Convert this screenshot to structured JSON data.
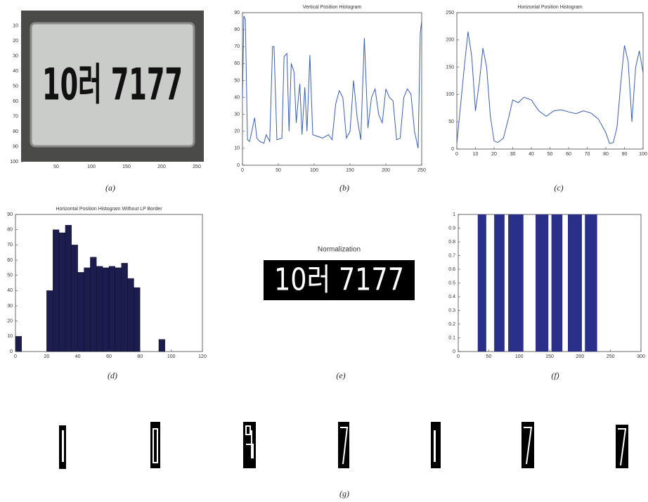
{
  "chart_data": [
    {
      "type": "image",
      "caption": "(a)",
      "plate_text": "10러 7177",
      "xlim": [
        0,
        260
      ],
      "ylim": [
        0,
        100
      ],
      "y_inverted": true,
      "xticks": [
        50,
        100,
        150,
        200,
        250
      ],
      "yticks": [
        10,
        20,
        30,
        40,
        50,
        60,
        70,
        80,
        90,
        100
      ]
    },
    {
      "type": "line",
      "title": "Vertical Position Histogram",
      "caption": "(b)",
      "color": "#3a5fb0",
      "x": [
        0,
        2,
        4,
        7,
        10,
        14,
        17,
        20,
        24,
        30,
        33,
        38,
        42,
        44,
        48,
        55,
        58,
        62,
        65,
        68,
        72,
        75,
        78,
        80,
        83,
        87,
        90,
        94,
        98,
        105,
        112,
        120,
        125,
        130,
        135,
        140,
        145,
        150,
        155,
        160,
        165,
        170,
        175,
        180,
        185,
        190,
        195,
        200,
        205,
        210,
        215,
        220,
        225,
        230,
        235,
        240,
        245,
        248,
        250
      ],
      "values": [
        40,
        88,
        86,
        15,
        14,
        22,
        28,
        16,
        14,
        13,
        18,
        14,
        70,
        70,
        15,
        16,
        64,
        66,
        20,
        60,
        55,
        25,
        40,
        48,
        18,
        46,
        20,
        65,
        18,
        17,
        16,
        18,
        15,
        36,
        44,
        40,
        16,
        20,
        50,
        28,
        15,
        75,
        22,
        40,
        45,
        30,
        25,
        45,
        40,
        38,
        15,
        16,
        40,
        45,
        42,
        20,
        10,
        78,
        85
      ],
      "xlim": [
        0,
        250
      ],
      "ylim": [
        0,
        90
      ],
      "xticks": [
        0,
        50,
        100,
        150,
        200,
        250
      ],
      "yticks": [
        0,
        10,
        20,
        30,
        40,
        50,
        60,
        70,
        80,
        90
      ]
    },
    {
      "type": "line",
      "title": "Horizontal Position Histogram",
      "caption": "(c)",
      "color": "#3a5fb0",
      "x": [
        0,
        2,
        4,
        6,
        8,
        10,
        12,
        14,
        16,
        18,
        20,
        22,
        25,
        28,
        30,
        33,
        36,
        40,
        44,
        48,
        52,
        56,
        60,
        64,
        68,
        72,
        76,
        80,
        82,
        84,
        86,
        88,
        90,
        92,
        94,
        96,
        98,
        100
      ],
      "values": [
        10,
        80,
        150,
        215,
        170,
        70,
        120,
        185,
        150,
        60,
        15,
        12,
        20,
        60,
        90,
        85,
        95,
        90,
        70,
        60,
        70,
        72,
        68,
        65,
        70,
        66,
        55,
        30,
        10,
        12,
        40,
        120,
        190,
        160,
        50,
        150,
        180,
        140
      ],
      "xlim": [
        0,
        100
      ],
      "ylim": [
        0,
        250
      ],
      "xticks": [
        0,
        10,
        20,
        30,
        40,
        50,
        60,
        70,
        80,
        90,
        100
      ],
      "yticks": [
        0,
        50,
        100,
        150,
        200,
        250
      ]
    },
    {
      "type": "histogram",
      "title": "Horizontal Position Histogram Without LP Border",
      "caption": "(d)",
      "color": "#1c1c4e",
      "bins": [
        0,
        4,
        8,
        12,
        16,
        20,
        24,
        28,
        32,
        36,
        40,
        44,
        48,
        52,
        56,
        60,
        64,
        68,
        72,
        76,
        80,
        84,
        88,
        92,
        96,
        100,
        104,
        108,
        112,
        116,
        120
      ],
      "values": [
        10,
        0,
        0,
        0,
        0,
        40,
        80,
        78,
        83,
        70,
        52,
        55,
        62,
        56,
        55,
        56,
        55,
        58,
        48,
        42,
        0,
        0,
        0,
        8,
        0,
        0,
        0,
        0,
        0,
        0
      ],
      "xlim": [
        0,
        120
      ],
      "ylim": [
        0,
        90
      ],
      "xticks": [
        0,
        20,
        40,
        60,
        80,
        100,
        120
      ],
      "yticks": [
        0,
        10,
        20,
        30,
        40,
        50,
        60,
        70,
        80,
        90
      ]
    },
    {
      "type": "image",
      "title": "Normalization",
      "caption": "(e)",
      "plate_text": "10러 7177"
    },
    {
      "type": "bar",
      "caption": "(f)",
      "color": "#2a2f8a",
      "intervals": [
        [
          32,
          46
        ],
        [
          59,
          76
        ],
        [
          82,
          107
        ],
        [
          127,
          148
        ],
        [
          153,
          171
        ],
        [
          180,
          203
        ],
        [
          208,
          228
        ]
      ],
      "values": [
        1,
        1,
        1,
        1,
        1,
        1,
        1
      ],
      "xlim": [
        0,
        300
      ],
      "ylim": [
        0,
        1
      ],
      "xticks": [
        0,
        50,
        100,
        150,
        200,
        250,
        300
      ],
      "yticks": [
        0,
        0.1,
        0.2,
        0.3,
        0.4,
        0.5,
        0.6,
        0.7,
        0.8,
        0.9,
        1
      ]
    },
    {
      "type": "image",
      "caption": "(g)"
    }
  ]
}
